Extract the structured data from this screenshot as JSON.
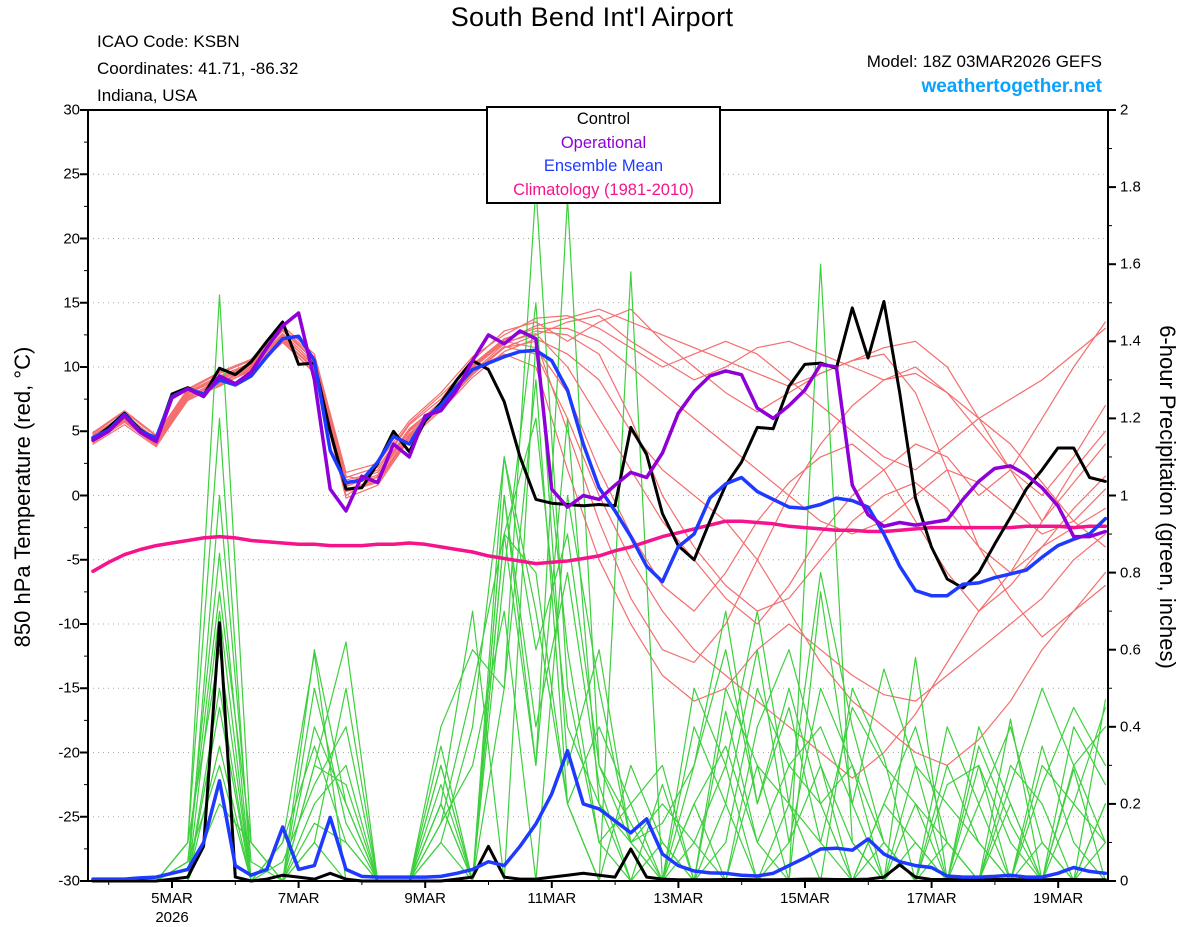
{
  "header": {
    "icao_line": "ICAO Code: KSBN",
    "coords_line": "Coordinates: 41.71, -86.32",
    "region_line": "Indiana, USA",
    "title": "South Bend Int'l Airport",
    "model_line": "Model: 18Z 03MAR2026 GEFS",
    "site_link": "weathertogether.net",
    "site_link_color": "#0aa2ff"
  },
  "legend": {
    "entries": [
      {
        "label": "Control",
        "color": "#000000"
      },
      {
        "label": "Operational",
        "color": "#8f00d8"
      },
      {
        "label": "Ensemble Mean",
        "color": "#1f3aff"
      },
      {
        "label": "Climatology (1981-2010)",
        "color": "#f5148c"
      }
    ]
  },
  "axes": {
    "left_title": "850 hPa Temperature (red, °C)",
    "right_title": "6-hour Precipitation (green, inches)",
    "left_tick_labels": [
      "30",
      "25",
      "20",
      "15",
      "10",
      "5",
      "0",
      "-5",
      "-10",
      "-15",
      "-20",
      "-25",
      "-30"
    ],
    "left_tick_values": [
      30,
      25,
      20,
      15,
      10,
      5,
      0,
      -5,
      -10,
      -15,
      -20,
      -25,
      -30
    ],
    "right_tick_labels": [
      "2",
      "1.8",
      "1.6",
      "1.4",
      "1.2",
      "1",
      "0.8",
      "0.6",
      "0.4",
      "0.2",
      "0"
    ],
    "right_tick_values": [
      2,
      1.8,
      1.6,
      1.4,
      1.2,
      1,
      0.8,
      0.6,
      0.4,
      0.2,
      0
    ],
    "x_tick_days": [
      5,
      7,
      9,
      11,
      13,
      15,
      17,
      19
    ],
    "x_tick_labels": [
      "5MAR",
      "7MAR",
      "9MAR",
      "11MAR",
      "13MAR",
      "15MAR",
      "17MAR",
      "19MAR"
    ],
    "x_minor_days": [
      4,
      6,
      8,
      10,
      12,
      14,
      16,
      18
    ],
    "year_label": "2026",
    "ylim": [
      -30,
      30
    ],
    "y2lim": [
      0,
      2
    ],
    "grid_temps": [
      25,
      20,
      15,
      10,
      5,
      0,
      -5,
      -10,
      -15,
      -20,
      -25
    ]
  },
  "chart_data": {
    "type": "line",
    "title": "South Bend Int'l Airport",
    "x_axis": {
      "start": "18Z 03MAR2026",
      "step_hours_main": 6,
      "step_hours_members": 12,
      "tick_labels": [
        "5MAR",
        "7MAR",
        "9MAR",
        "11MAR",
        "13MAR",
        "15MAR",
        "17MAR",
        "19MAR"
      ]
    },
    "ylabel_left": "850 hPa Temperature (red, °C)",
    "ylabel_right": "6-hour Precipitation (green, inches)",
    "ylim_left": [
      -30,
      30
    ],
    "ylim_right": [
      0,
      2
    ],
    "grid": "dotted-horizontal",
    "colors": {
      "control": "#000000",
      "operational": "#8f00d8",
      "ensemble_mean": "#1f3aff",
      "climatology": "#f5148c",
      "members_temp": "#f56e6e",
      "members_precip": "#3ecf3e"
    },
    "temp_c": {
      "control": [
        4.4,
        5.3,
        6.4,
        5.1,
        4.4,
        7.9,
        8.4,
        7.8,
        9.9,
        9.4,
        10.4,
        12.0,
        13.5,
        10.2,
        10.3,
        5.0,
        0.5,
        0.6,
        2.5,
        5.0,
        3.4,
        5.8,
        7.2,
        9.0,
        10.5,
        9.8,
        7.3,
        3.0,
        -0.3,
        -0.6,
        -0.7,
        -0.8,
        -0.7,
        -0.8,
        5.3,
        3.2,
        -1.4,
        -3.9,
        -5.0,
        -2.0,
        0.8,
        2.6,
        5.3,
        5.2,
        8.5,
        10.2,
        10.3,
        9.9,
        14.6,
        10.7,
        15.1,
        8.0,
        -0.2,
        -4.0,
        -6.5,
        -7.2,
        -6.0,
        -3.8,
        -1.7,
        0.5,
        2.0,
        3.7,
        3.7,
        1.4,
        1.1
      ],
      "operational": [
        4.3,
        5.0,
        6.2,
        4.9,
        4.2,
        7.6,
        8.3,
        7.7,
        9.3,
        8.7,
        9.6,
        11.5,
        13.2,
        14.2,
        9.0,
        0.5,
        -1.2,
        1.5,
        1.0,
        4.0,
        3.0,
        6.2,
        6.6,
        8.2,
        10.5,
        12.5,
        11.8,
        12.8,
        12.2,
        0.5,
        -0.9,
        0.0,
        -0.3,
        0.8,
        1.8,
        1.4,
        3.3,
        6.4,
        8.1,
        9.3,
        9.7,
        9.4,
        6.8,
        6.0,
        7.0,
        8.2,
        10.2,
        10.0,
        0.8,
        -1.5,
        -2.4,
        -2.1,
        -2.3,
        -2.1,
        -1.9,
        -0.3,
        1.1,
        2.1,
        2.3,
        1.6,
        0.6,
        -0.8,
        -3.2,
        -3.2,
        -2.8
      ],
      "ensemble_mean": [
        4.5,
        5.1,
        6.3,
        5.0,
        4.5,
        7.7,
        8.3,
        7.9,
        9.0,
        8.6,
        9.3,
        10.8,
        12.2,
        12.4,
        10.5,
        3.5,
        1.0,
        1.2,
        2.6,
        4.6,
        4.0,
        6.0,
        7.0,
        8.5,
        9.8,
        10.3,
        10.8,
        11.2,
        11.3,
        10.5,
        8.2,
        4.0,
        0.6,
        -1.2,
        -3.2,
        -5.5,
        -6.7,
        -4.0,
        -3.0,
        -0.2,
        0.9,
        1.4,
        0.3,
        -0.3,
        -0.9,
        -1.0,
        -0.7,
        -0.2,
        -0.4,
        -0.9,
        -3.0,
        -5.5,
        -7.4,
        -7.8,
        -7.8,
        -6.9,
        -6.8,
        -6.4,
        -6.1,
        -5.8,
        -4.8,
        -3.9,
        -3.4,
        -3.0,
        -1.8
      ],
      "climatology": [
        -5.9,
        -5.2,
        -4.6,
        -4.2,
        -3.9,
        -3.7,
        -3.5,
        -3.3,
        -3.2,
        -3.3,
        -3.5,
        -3.6,
        -3.7,
        -3.8,
        -3.8,
        -3.9,
        -3.9,
        -3.9,
        -3.8,
        -3.8,
        -3.7,
        -3.8,
        -4.0,
        -4.2,
        -4.4,
        -4.7,
        -4.9,
        -5.1,
        -5.3,
        -5.2,
        -5.1,
        -4.9,
        -4.7,
        -4.3,
        -4.0,
        -3.6,
        -3.2,
        -2.9,
        -2.6,
        -2.3,
        -2.0,
        -2.0,
        -2.1,
        -2.2,
        -2.4,
        -2.5,
        -2.6,
        -2.7,
        -2.7,
        -2.8,
        -2.8,
        -2.7,
        -2.6,
        -2.5,
        -2.5,
        -2.5,
        -2.5,
        -2.5,
        -2.5,
        -2.4,
        -2.4,
        -2.4,
        -2.5,
        -2.4,
        -2.4
      ]
    },
    "precip_in": {
      "control": [
        0,
        0,
        0,
        0,
        0,
        0.005,
        0.01,
        0.09,
        0.67,
        0.01,
        0,
        0.005,
        0.015,
        0.01,
        0.005,
        0.02,
        0.005,
        0,
        0,
        0,
        0,
        0,
        0,
        0.005,
        0.01,
        0.09,
        0.01,
        0.005,
        0.005,
        0.01,
        0.015,
        0.02,
        0.015,
        0.01,
        0.083,
        0.01,
        0.005,
        0.003,
        0.003,
        0.003,
        0.004,
        0.004,
        0.003,
        0.003,
        0.004,
        0.005,
        0.005,
        0.004,
        0.004,
        0.005,
        0.01,
        0.042,
        0.01,
        0.004,
        0.004,
        0.003,
        0.003,
        0.004,
        0.004,
        0.003,
        0.003,
        0.004,
        0.004,
        0.003,
        0.003
      ],
      "ensemble_mean": [
        0.005,
        0.005,
        0.005,
        0.008,
        0.01,
        0.02,
        0.03,
        0.1,
        0.26,
        0.04,
        0.015,
        0.03,
        0.14,
        0.03,
        0.04,
        0.165,
        0.03,
        0.012,
        0.01,
        0.01,
        0.01,
        0.01,
        0.012,
        0.02,
        0.03,
        0.05,
        0.04,
        0.09,
        0.148,
        0.226,
        0.338,
        0.2,
        0.187,
        0.156,
        0.125,
        0.161,
        0.07,
        0.04,
        0.026,
        0.021,
        0.02,
        0.015,
        0.013,
        0.02,
        0.04,
        0.06,
        0.083,
        0.085,
        0.08,
        0.109,
        0.07,
        0.05,
        0.04,
        0.035,
        0.013,
        0.01,
        0.01,
        0.012,
        0.015,
        0.01,
        0.01,
        0.02,
        0.035,
        0.025,
        0.02
      ]
    },
    "members_temp_12h": [
      [
        4.8,
        6.5,
        4.6,
        8.2,
        9.5,
        10.5,
        13.0,
        10.8,
        1.5,
        1.0,
        4.5,
        6.8,
        9.5,
        11.5,
        12.5,
        13.5,
        14.0,
        12.0,
        10.5,
        9.0,
        10.0,
        11.5,
        12.0,
        11.0,
        10.0,
        9.0,
        9.5,
        8.0,
        6.0,
        7.5,
        9.0,
        11.0,
        13.0
      ],
      [
        4.2,
        6.0,
        4.0,
        7.8,
        8.8,
        10.0,
        12.5,
        10.0,
        0.8,
        2.0,
        5.5,
        7.5,
        10.5,
        12.8,
        13.5,
        12.0,
        13.5,
        14.5,
        12.0,
        10.0,
        8.0,
        6.5,
        8.0,
        9.5,
        10.5,
        11.0,
        8.0,
        2.0,
        -4.0,
        -6.0,
        -2.0,
        2.0,
        5.0
      ],
      [
        4.0,
        5.5,
        3.8,
        7.5,
        8.5,
        9.8,
        12.0,
        9.5,
        0.0,
        1.5,
        5.0,
        7.0,
        9.8,
        11.0,
        10.0,
        2.0,
        -5.0,
        -10.0,
        -14.0,
        -16.0,
        -15.0,
        -12.0,
        -10.0,
        -12.0,
        -14.0,
        -15.5,
        -16.0,
        -14.0,
        -12.0,
        -10.0,
        -8.0,
        -5.0,
        -3.0
      ],
      [
        4.6,
        6.2,
        4.3,
        8.0,
        9.2,
        10.2,
        12.8,
        10.5,
        1.2,
        1.8,
        5.2,
        7.2,
        10.0,
        12.0,
        11.5,
        8.0,
        2.0,
        -3.0,
        -7.0,
        -9.0,
        -6.0,
        -2.0,
        1.0,
        3.0,
        4.0,
        2.0,
        -2.0,
        -6.0,
        -9.0,
        -7.0,
        -4.0,
        -1.0,
        1.5
      ],
      [
        4.4,
        6.0,
        4.1,
        7.7,
        9.0,
        10.0,
        12.3,
        10.2,
        0.5,
        1.2,
        4.8,
        7.0,
        9.6,
        11.8,
        12.8,
        12.5,
        11.0,
        6.0,
        0.0,
        -4.0,
        -7.0,
        -9.0,
        -8.0,
        -5.0,
        -2.0,
        0.0,
        1.0,
        -1.0,
        -4.0,
        -8.0,
        -11.0,
        -9.0,
        -6.0
      ],
      [
        4.3,
        5.8,
        4.0,
        7.6,
        8.7,
        9.9,
        12.1,
        9.8,
        0.3,
        1.0,
        4.6,
        6.8,
        9.4,
        11.5,
        12.0,
        5.0,
        -2.0,
        -8.0,
        -12.0,
        -13.0,
        -10.0,
        -5.0,
        0.0,
        4.0,
        7.0,
        9.0,
        10.0,
        8.0,
        5.0,
        2.0,
        0.0,
        3.0,
        7.0
      ],
      [
        4.7,
        6.3,
        4.4,
        8.1,
        9.3,
        10.3,
        12.9,
        10.6,
        1.4,
        2.2,
        5.6,
        7.8,
        10.2,
        12.2,
        13.0,
        13.0,
        12.0,
        10.0,
        8.0,
        6.0,
        4.0,
        2.0,
        0.0,
        -2.0,
        -3.0,
        -2.0,
        0.0,
        2.0,
        1.0,
        -1.0,
        -3.0,
        -2.0,
        0.5
      ],
      [
        4.1,
        5.7,
        3.9,
        7.4,
        8.6,
        9.7,
        11.9,
        9.6,
        -0.2,
        0.8,
        4.4,
        6.6,
        9.2,
        11.2,
        12.2,
        11.0,
        9.0,
        5.0,
        2.0,
        0.0,
        -2.0,
        -5.0,
        -9.0,
        -13.0,
        -16.0,
        -18.0,
        -20.0,
        -21.0,
        -19.0,
        -16.0,
        -12.0,
        -9.0,
        -7.0
      ],
      [
        4.9,
        6.6,
        4.7,
        8.3,
        9.6,
        10.6,
        13.2,
        11.0,
        1.8,
        2.5,
        5.8,
        8.0,
        10.8,
        12.5,
        13.8,
        14.0,
        13.0,
        11.5,
        10.0,
        11.0,
        12.0,
        11.0,
        9.0,
        7.0,
        5.0,
        3.0,
        2.0,
        4.0,
        6.0,
        4.0,
        1.0,
        -2.0,
        -4.0
      ],
      [
        4.5,
        6.1,
        4.2,
        7.9,
        9.1,
        10.1,
        12.6,
        10.3,
        0.9,
        1.4,
        5.0,
        7.1,
        9.9,
        11.9,
        12.6,
        10.0,
        6.0,
        2.0,
        -2.0,
        -5.0,
        -8.0,
        -10.0,
        -7.0,
        -3.0,
        0.0,
        2.0,
        4.0,
        3.0,
        0.0,
        2.0,
        6.0,
        10.0,
        13.5
      ],
      [
        4.2,
        5.9,
        4.0,
        7.6,
        8.8,
        9.8,
        12.2,
        9.9,
        0.4,
        1.1,
        4.7,
        6.9,
        9.5,
        11.6,
        11.0,
        6.0,
        0.0,
        -5.0,
        -9.0,
        -12.0,
        -14.0,
        -16.0,
        -18.0,
        -20.0,
        -22.0,
        -20.0,
        -17.0,
        -13.0,
        -9.0,
        -6.0,
        -4.0,
        -2.5,
        -1.0
      ],
      [
        4.6,
        6.2,
        4.3,
        8.0,
        9.0,
        10.0,
        12.4,
        10.1,
        0.7,
        1.6,
        5.1,
        7.3,
        10.1,
        12.1,
        13.2,
        13.8,
        14.5,
        13.5,
        12.5,
        11.5,
        10.5,
        9.5,
        8.5,
        9.5,
        10.5,
        11.5,
        12.0,
        10.0,
        6.0,
        2.0,
        -2.0,
        1.0,
        4.0
      ]
    ],
    "members_precip_12h": [
      [
        0,
        0,
        0,
        0,
        0.7,
        0,
        0,
        0.1,
        0,
        0,
        0,
        0.3,
        0,
        1.0,
        0.3,
        1.77,
        0.3,
        0.1,
        0,
        0.2,
        0,
        0.3,
        0,
        0.75,
        0.2,
        0,
        0.1,
        0,
        0.3,
        0,
        0.1,
        0,
        0.2
      ],
      [
        0,
        0,
        0,
        0.1,
        1.52,
        0.1,
        0,
        0.3,
        0.62,
        0,
        0,
        0.1,
        0,
        0.9,
        1.2,
        0.4,
        0.2,
        0,
        0.1,
        0,
        0.44,
        0.1,
        0,
        1.6,
        0.1,
        0,
        0.58,
        0,
        0,
        0.42,
        0,
        0.29,
        0
      ],
      [
        0,
        0,
        0,
        0,
        0.45,
        0,
        0.1,
        0.59,
        0,
        0,
        0,
        0.2,
        0,
        0.5,
        1.3,
        0.2,
        0,
        1.58,
        0,
        0.1,
        0.3,
        0,
        0.2,
        0,
        0.5,
        0.32,
        0,
        0.1,
        0,
        0.2,
        0,
        0,
        0.47
      ],
      [
        0,
        0,
        0,
        0.05,
        0.3,
        0,
        0,
        0.15,
        0.1,
        0,
        0,
        0.4,
        0.6,
        0.5,
        1.8,
        0.5,
        0.1,
        0,
        0.25,
        0,
        0.1,
        0.5,
        0.3,
        0.2,
        0,
        0.1,
        0,
        0.3,
        0.1,
        0,
        0.35,
        0.1,
        0
      ],
      [
        0,
        0,
        0,
        0,
        1.0,
        0.05,
        0,
        0.4,
        0.2,
        0,
        0,
        0.15,
        0.5,
        0.9,
        0.3,
        1.2,
        0.2,
        0.1,
        0,
        0.3,
        0.6,
        0.2,
        0.45,
        0.1,
        0,
        0.2,
        0.1,
        0,
        0.4,
        0.2,
        0,
        0.3,
        0.4
      ],
      [
        0,
        0,
        0,
        0.1,
        0.6,
        0,
        0.05,
        0.25,
        0.4,
        0,
        0,
        0.2,
        0,
        1.1,
        0.6,
        0.9,
        0.3,
        0.15,
        0,
        0.4,
        0.2,
        0,
        0.1,
        0.5,
        0.3,
        0,
        0.2,
        0.1,
        0,
        0.3,
        0.2,
        0,
        0.1
      ],
      [
        0,
        0,
        0,
        0,
        0.2,
        0.1,
        0,
        0.5,
        0.15,
        0,
        0,
        0.3,
        0,
        0.8,
        1.5,
        0.3,
        0.6,
        0.1,
        0.2,
        0.1,
        0,
        0.4,
        0.6,
        0.3,
        0.1,
        0,
        0.3,
        0.2,
        0.1,
        0,
        0.25,
        0.45,
        0.3
      ],
      [
        0,
        0,
        0,
        0.05,
        0.85,
        0,
        0,
        0.2,
        0.3,
        0,
        0,
        0.1,
        0.4,
        1.1,
        0.7,
        0.2,
        0,
        0.3,
        0.1,
        0,
        0.5,
        0.3,
        0.2,
        0.8,
        0.4,
        0.1,
        0,
        0.25,
        0.3,
        0.1,
        0,
        0.2,
        0.1
      ],
      [
        0,
        0,
        0,
        0,
        0.5,
        0,
        0.1,
        0.35,
        0.1,
        0,
        0,
        0.25,
        0,
        0.9,
        0.8,
        0.2,
        0.4,
        0.2,
        0,
        0.2,
        0.35,
        0.1,
        0.3,
        0.4,
        0.2,
        0.55,
        0.3,
        0,
        0.2,
        0.4,
        0.1,
        0,
        0.2
      ],
      [
        0,
        0,
        0,
        0.1,
        1.2,
        0,
        0,
        0.1,
        0.5,
        0,
        0,
        0.2,
        0.7,
        0,
        1.4,
        0.6,
        0.1,
        0.2,
        0.3,
        0,
        0.2,
        0.6,
        0.1,
        0.3,
        0,
        0.2,
        0.4,
        0.1,
        0,
        0.25,
        0.5,
        0.3,
        0.1
      ],
      [
        0,
        0,
        0,
        0,
        0.35,
        0,
        0,
        0.6,
        0.2,
        0,
        0,
        0.15,
        0.3,
        0.7,
        0,
        1.0,
        0.5,
        0.1,
        0.15,
        0.3,
        0.7,
        0.2,
        0.5,
        0.2,
        0.3,
        0.1,
        0,
        0.4,
        0.2,
        0,
        0.3,
        0.2,
        0.45
      ],
      [
        0,
        0,
        0,
        0.05,
        0.75,
        0.1,
        0,
        0.3,
        0.25,
        0,
        0,
        0.35,
        0,
        1.0,
        0.4,
        0.8,
        0.25,
        0,
        0,
        0.5,
        0.3,
        0.7,
        0.2,
        0.1,
        0.45,
        0.3,
        0.2,
        0,
        0.35,
        0.15,
        0,
        0.4,
        0.25
      ]
    ]
  }
}
